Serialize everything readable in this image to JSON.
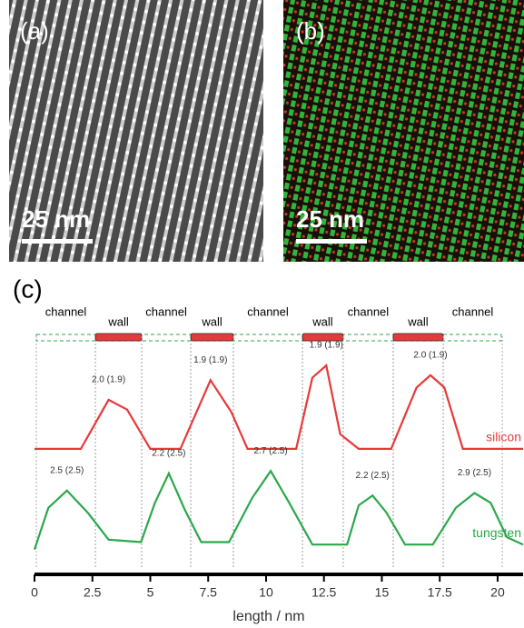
{
  "panels": [
    {
      "label": "(a)",
      "scale_bar": "25 nm"
    },
    {
      "label": "(b)",
      "scale_bar": "25 nm"
    }
  ],
  "chart_data": {
    "type": "line",
    "panel_label": "(c)",
    "x_label": "length / nm",
    "xlim": [
      0,
      21.1
    ],
    "xticks": [
      0,
      2.5,
      5,
      7.5,
      10,
      12.5,
      15,
      17.5,
      20
    ],
    "ylim": [
      0,
      10
    ],
    "regions": [
      {
        "label": "channel",
        "start": 0.08,
        "end": 2.63
      },
      {
        "label": "wall",
        "start": 2.63,
        "end": 4.63
      },
      {
        "label": "channel",
        "start": 4.63,
        "end": 6.75
      },
      {
        "label": "wall",
        "start": 6.75,
        "end": 8.59
      },
      {
        "label": "channel",
        "start": 8.59,
        "end": 11.57
      },
      {
        "label": "wall",
        "start": 11.57,
        "end": 13.33
      },
      {
        "label": "channel",
        "start": 13.33,
        "end": 15.49
      },
      {
        "label": "wall",
        "start": 15.49,
        "end": 17.65
      },
      {
        "label": "channel",
        "start": 17.65,
        "end": 20.2
      }
    ],
    "series": [
      {
        "name": "silicon",
        "color": "#e8393a",
        "x": [
          0,
          2,
          3.2,
          4,
          5,
          6.3,
          7.6,
          8.5,
          9.2,
          11.3,
          12,
          12.6,
          13.2,
          14,
          15.4,
          16.5,
          17.1,
          17.7,
          18.5,
          21.1
        ],
        "values": [
          4.3,
          4.3,
          6.3,
          5.9,
          4.3,
          4.3,
          7.1,
          5.8,
          4.3,
          4.3,
          7.2,
          7.7,
          4.9,
          4.3,
          4.3,
          6.8,
          7.3,
          6.8,
          4.3,
          4.3
        ]
      },
      {
        "name": "tungsten",
        "color": "#2aa84a",
        "x": [
          0,
          0.6,
          1.4,
          2.3,
          3.2,
          4.6,
          5.2,
          5.8,
          6.5,
          7.2,
          8.4,
          9.4,
          10.2,
          11,
          12,
          13.5,
          14,
          14.6,
          15.2,
          16,
          17.2,
          18.2,
          19,
          19.7,
          20.4,
          21.1
        ],
        "values": [
          0.2,
          1.9,
          2.6,
          1.7,
          0.6,
          0.5,
          2.1,
          3.3,
          1.8,
          0.5,
          0.5,
          2.3,
          3.4,
          2.1,
          0.4,
          0.4,
          2.0,
          2.4,
          1.7,
          0.4,
          0.4,
          1.9,
          2.5,
          2.1,
          0.7,
          0.4
        ]
      }
    ],
    "annotations": [
      {
        "text": "2.0 (1.9)",
        "x": 3.2,
        "y": 6.3
      },
      {
        "text": "1.9 (1.9)",
        "x": 7.6,
        "y": 7.1
      },
      {
        "text": "1.9 (1.9)",
        "x": 12.6,
        "y": 7.7
      },
      {
        "text": "2.0 (1.9)",
        "x": 17.1,
        "y": 7.3
      },
      {
        "text": "2.5 (2.5)",
        "x": 1.4,
        "y": 2.6
      },
      {
        "text": "2.2 (2.5)",
        "x": 5.8,
        "y": 3.3
      },
      {
        "text": "2.7 (2.5)",
        "x": 10.2,
        "y": 3.4
      },
      {
        "text": "2.2 (2.5)",
        "x": 14.6,
        "y": 2.4
      },
      {
        "text": "2.9 (2.5)",
        "x": 19,
        "y": 2.5
      }
    ]
  }
}
